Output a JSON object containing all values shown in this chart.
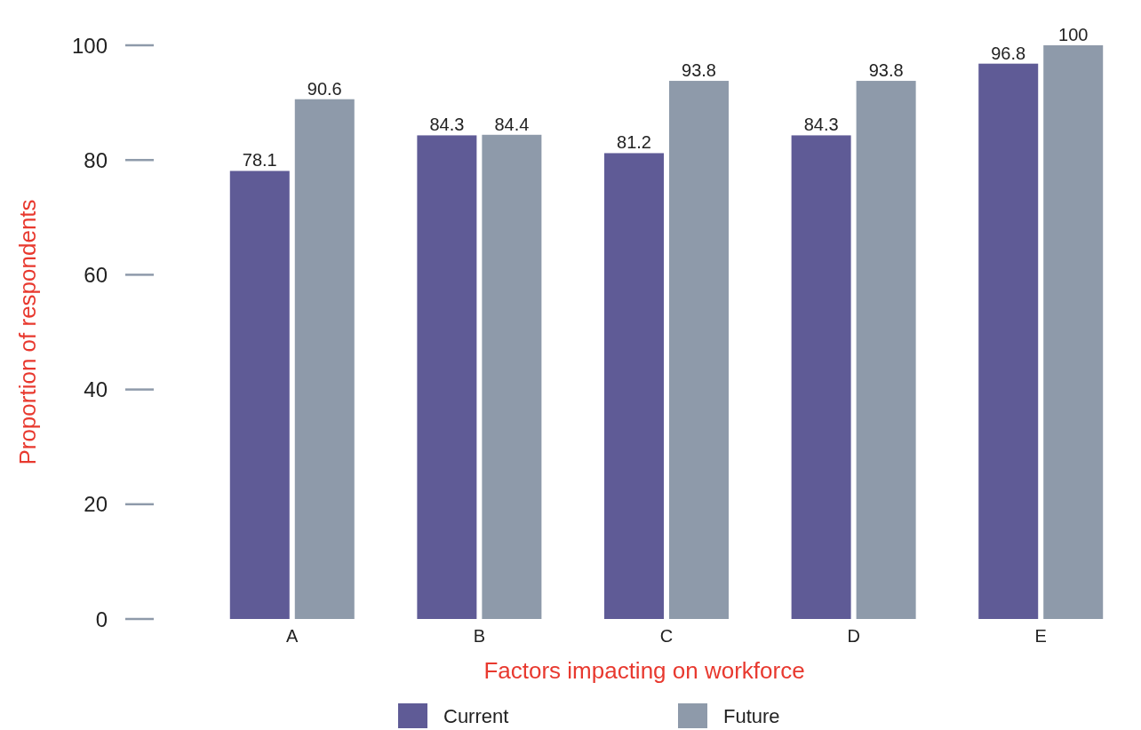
{
  "chart_data": {
    "type": "bar",
    "xlabel": "Factors impacting on workforce",
    "ylabel": "Proportion of respondents",
    "categories": [
      "A",
      "B",
      "C",
      "D",
      "E"
    ],
    "series": [
      {
        "name": "Current",
        "color": "#5f5b96",
        "values": [
          78.1,
          84.3,
          81.2,
          84.3,
          96.8
        ]
      },
      {
        "name": "Future",
        "color": "#8e9aaa",
        "values": [
          90.6,
          84.4,
          93.8,
          93.8,
          100
        ]
      }
    ],
    "ylim": [
      0,
      100
    ],
    "yticks": [
      0,
      20,
      40,
      60,
      80,
      100
    ],
    "data_labels": true,
    "legend": "bottom",
    "grid": false
  }
}
